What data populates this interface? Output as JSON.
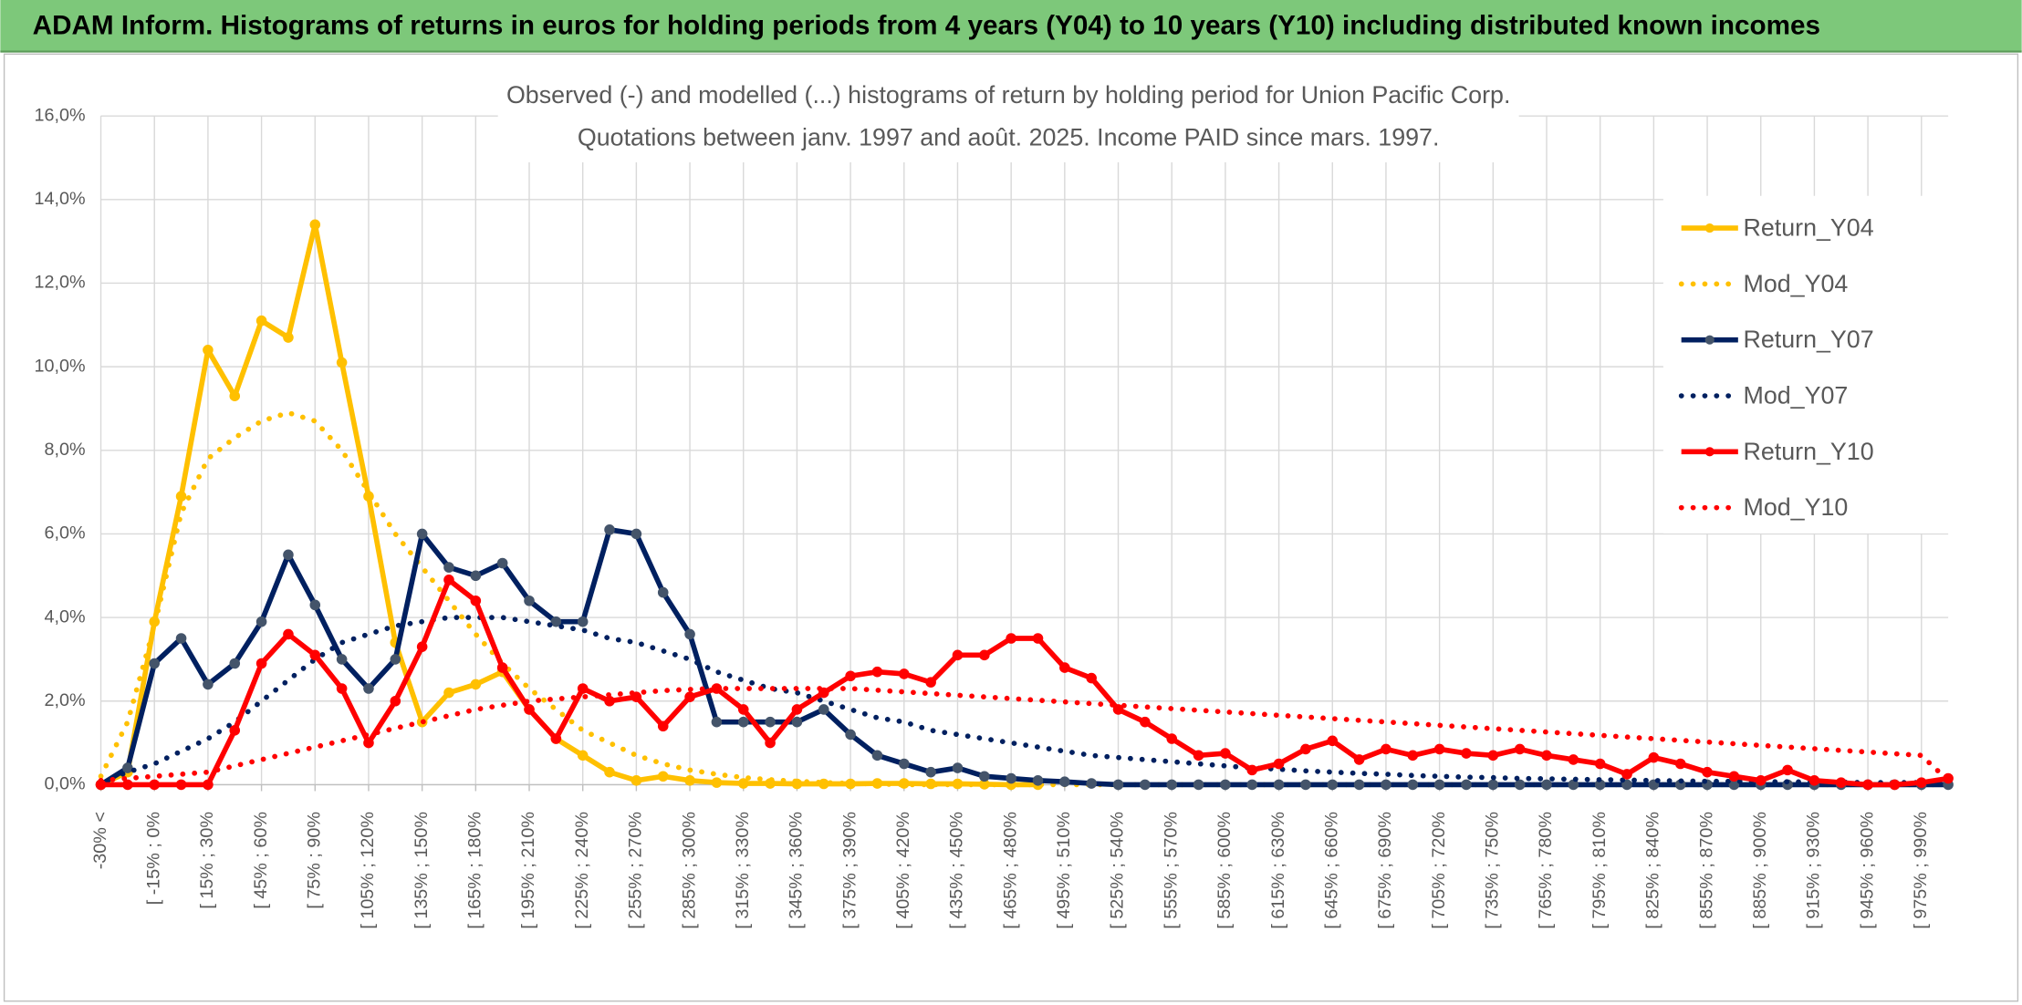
{
  "header": {
    "title": "ADAM Inform. Histograms of returns in euros for holding periods from 4 years (Y04) to 10 years (Y10) including distributed known incomes"
  },
  "chart_data": {
    "type": "line",
    "title": "Observed (-) and modelled (...) histograms of return by holding period for Union Pacific Corp.",
    "subtitle": "Quotations between janv. 1997 and août. 2025. Income PAID since mars. 1997.",
    "categories": [
      "-30% <",
      null,
      "[ -15% ; 0%",
      null,
      "[ 15% ; 30%",
      null,
      "[ 45% ; 60%",
      null,
      "[ 75% ; 90%",
      null,
      "[ 105% ; 120%",
      null,
      "[ 135% ; 150%",
      null,
      "[ 165% ; 180%",
      null,
      "[ 195% ; 210%",
      null,
      "[ 225% ; 240%",
      null,
      "[ 255% ; 270%",
      null,
      "[ 285% ; 300%",
      null,
      "[ 315% ; 330%",
      null,
      "[ 345% ; 360%",
      null,
      "[ 375% ; 390%",
      null,
      "[ 405% ; 420%",
      null,
      "[ 435% ; 450%",
      null,
      "[ 465% ; 480%",
      null,
      "[ 495% ; 510%",
      null,
      "[ 525% ; 540%",
      null,
      "[ 555% ; 570%",
      null,
      "[ 585% ; 600%",
      null,
      "[ 615% ; 630%",
      null,
      "[ 645% ; 660%",
      null,
      "[ 675% ; 690%",
      null,
      "[ 705% ; 720%",
      null,
      "[ 735% ; 750%",
      null,
      "[ 765% ; 780%",
      null,
      "[ 795% ; 810%",
      null,
      "[ 825% ; 840%",
      null,
      "[ 855% ; 870%",
      null,
      "[ 885% ; 900%",
      null,
      "[ 915% ; 930%",
      null,
      "[ 945% ; 960%",
      null,
      "[ 975% ; 990%",
      null
    ],
    "series": [
      {
        "name": "Return_Y04",
        "color": "#FFC000",
        "style": "solid",
        "markers": true,
        "values": [
          0,
          0.3,
          3.9,
          6.9,
          10.4,
          9.3,
          11.1,
          10.7,
          13.4,
          10.1,
          6.9,
          3.4,
          1.5,
          2.2,
          2.4,
          2.7,
          1.8,
          1.1,
          0.7,
          0.3,
          0.1,
          0.2,
          0.1,
          0.05,
          0.03,
          0.03,
          0.02,
          0.02,
          0.02,
          0.03,
          0.03,
          0.02,
          0.02,
          0.01,
          0,
          0,
          null,
          null,
          null,
          null,
          null,
          null,
          null,
          null,
          null,
          null,
          null,
          null,
          null,
          null,
          null,
          null,
          null,
          null,
          null,
          null,
          null,
          null,
          null,
          null,
          null,
          null,
          null,
          null,
          null,
          null,
          null,
          null,
          null,
          null
        ]
      },
      {
        "name": "Mod_Y04",
        "color": "#FFC000",
        "style": "dotted",
        "markers": false,
        "values": [
          0.2,
          1.5,
          3.8,
          6.5,
          7.8,
          8.3,
          8.7,
          8.9,
          8.7,
          8.0,
          7.0,
          6.0,
          5.2,
          4.4,
          3.6,
          2.9,
          2.3,
          1.8,
          1.3,
          1.0,
          0.7,
          0.5,
          0.35,
          0.25,
          0.17,
          0.12,
          0.08,
          0.05,
          0.03,
          0.02,
          0,
          0,
          0,
          0,
          0,
          0,
          0,
          0,
          0,
          0,
          0,
          0,
          0,
          0,
          0,
          0,
          0,
          0,
          0,
          0,
          0,
          0,
          0,
          0,
          0,
          0,
          0,
          0,
          0,
          0,
          0,
          0,
          0,
          0,
          0,
          0,
          0,
          0,
          0,
          0
        ]
      },
      {
        "name": "Return_Y07",
        "color": "#002060",
        "marker_color": "#44546A",
        "style": "solid",
        "markers": true,
        "values": [
          0,
          0.4,
          2.9,
          3.5,
          2.4,
          2.9,
          3.9,
          5.5,
          4.3,
          3.0,
          2.3,
          3.0,
          6.0,
          5.2,
          5.0,
          5.3,
          4.4,
          3.9,
          3.9,
          6.1,
          6.0,
          4.6,
          3.6,
          1.5,
          1.5,
          1.5,
          1.5,
          1.8,
          1.2,
          0.7,
          0.5,
          0.3,
          0.4,
          0.2,
          0.15,
          0.1,
          0.07,
          0.03,
          0,
          0,
          0,
          0,
          0,
          0,
          0,
          0,
          0,
          0,
          0,
          0,
          0,
          0,
          0,
          0,
          0,
          0,
          0,
          0,
          0,
          0,
          0,
          0,
          0,
          0,
          0,
          0,
          0,
          0,
          0,
          0
        ]
      },
      {
        "name": "Mod_Y07",
        "color": "#002060",
        "style": "dotted",
        "markers": false,
        "values": [
          0.05,
          0.3,
          0.5,
          0.8,
          1.1,
          1.5,
          2.0,
          2.5,
          3.0,
          3.4,
          3.6,
          3.8,
          3.9,
          4.0,
          4.0,
          4.0,
          3.9,
          3.8,
          3.7,
          3.5,
          3.4,
          3.2,
          3.0,
          2.7,
          2.5,
          2.3,
          2.2,
          2.0,
          1.8,
          1.6,
          1.5,
          1.3,
          1.2,
          1.1,
          1.0,
          0.9,
          0.8,
          0.7,
          0.65,
          0.6,
          0.55,
          0.5,
          0.45,
          0.4,
          0.37,
          0.33,
          0.3,
          0.27,
          0.25,
          0.22,
          0.2,
          0.18,
          0.17,
          0.15,
          0.14,
          0.13,
          0.12,
          0.11,
          0.1,
          0.09,
          0.08,
          0.08,
          0.07,
          0.07,
          0.06,
          0.06,
          0.05,
          0.05,
          0.05,
          0.05
        ]
      },
      {
        "name": "Return_Y10",
        "color": "#FF0000",
        "style": "solid",
        "markers": true,
        "values": [
          0,
          0,
          0,
          0,
          0,
          1.3,
          2.9,
          3.6,
          3.1,
          2.3,
          1.0,
          2.0,
          3.3,
          4.9,
          4.4,
          2.8,
          1.8,
          1.1,
          2.3,
          2.0,
          2.1,
          1.4,
          2.1,
          2.3,
          1.8,
          1.0,
          1.8,
          2.2,
          2.6,
          2.7,
          2.65,
          2.45,
          3.1,
          3.1,
          3.5,
          3.5,
          2.8,
          2.55,
          1.8,
          1.5,
          1.1,
          0.7,
          0.75,
          0.35,
          0.5,
          0.85,
          1.05,
          0.6,
          0.85,
          0.7,
          0.85,
          0.75,
          0.7,
          0.85,
          0.7,
          0.6,
          0.5,
          0.25,
          0.65,
          0.5,
          0.3,
          0.2,
          0.1,
          0.35,
          0.1,
          0.05,
          0,
          0,
          0.05,
          0.15
        ]
      },
      {
        "name": "Mod_Y10",
        "color": "#FF0000",
        "style": "dotted",
        "markers": false,
        "values": [
          0.1,
          0.15,
          0.2,
          0.25,
          0.3,
          0.45,
          0.6,
          0.75,
          0.9,
          1.05,
          1.2,
          1.35,
          1.5,
          1.65,
          1.8,
          1.9,
          2.0,
          2.05,
          2.1,
          2.15,
          2.2,
          2.25,
          2.28,
          2.3,
          2.3,
          2.3,
          2.3,
          2.3,
          2.3,
          2.26,
          2.22,
          2.18,
          2.14,
          2.1,
          2.06,
          2.02,
          1.98,
          1.94,
          1.9,
          1.86,
          1.82,
          1.78,
          1.74,
          1.7,
          1.66,
          1.62,
          1.58,
          1.54,
          1.5,
          1.46,
          1.42,
          1.38,
          1.34,
          1.3,
          1.26,
          1.22,
          1.18,
          1.14,
          1.1,
          1.06,
          1.02,
          0.98,
          0.94,
          0.9,
          0.86,
          0.82,
          0.78,
          0.74,
          0.7,
          0.1
        ]
      }
    ],
    "ylim": [
      0,
      16
    ],
    "yticks": [
      {
        "value": 0,
        "label": "0,0%"
      },
      {
        "value": 2,
        "label": "2,0%"
      },
      {
        "value": 4,
        "label": "4,0%"
      },
      {
        "value": 6,
        "label": "6,0%"
      },
      {
        "value": 8,
        "label": "8,0%"
      },
      {
        "value": 10,
        "label": "10,0%"
      },
      {
        "value": 12,
        "label": "12,0%"
      },
      {
        "value": 14,
        "label": "14,0%"
      },
      {
        "value": 16,
        "label": "16,0%"
      }
    ],
    "grid": true,
    "legend": "right"
  }
}
